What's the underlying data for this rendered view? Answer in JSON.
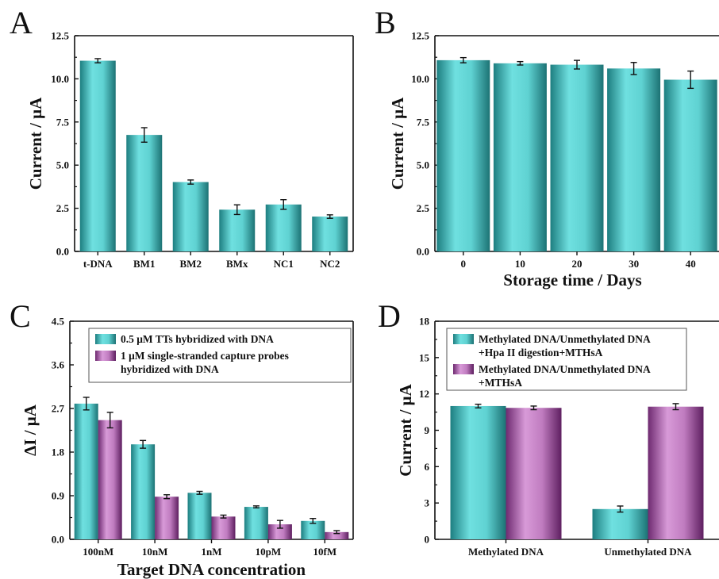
{
  "colors": {
    "teal": "#4fc4c4",
    "purple": "#b060b0",
    "axis": "#111111"
  },
  "chart_data": [
    {
      "panel": "A",
      "type": "bar",
      "ylabel": "Current / μA",
      "xlabel": "",
      "ylim": [
        0,
        12.5
      ],
      "yticks": [
        "0.0",
        "2.5",
        "5.0",
        "7.5",
        "10.0",
        "12.5"
      ],
      "categories": [
        "t-DNA",
        "BM1",
        "BM2",
        "BMx",
        "NC1",
        "NC2"
      ],
      "series": [
        {
          "values": [
            11.05,
            6.75,
            4.02,
            2.42,
            2.72,
            2.02
          ],
          "errors": [
            0.12,
            0.42,
            0.12,
            0.28,
            0.28,
            0.1
          ]
        }
      ]
    },
    {
      "panel": "B",
      "type": "bar",
      "ylabel": "Current / μA",
      "xlabel": "Storage time / Days",
      "ylim": [
        0,
        12.5
      ],
      "yticks": [
        "0.0",
        "2.5",
        "5.0",
        "7.5",
        "10.0",
        "12.5"
      ],
      "categories": [
        "0",
        "10",
        "20",
        "30",
        "40"
      ],
      "series": [
        {
          "values": [
            11.08,
            10.9,
            10.82,
            10.6,
            9.95
          ],
          "errors": [
            0.15,
            0.1,
            0.25,
            0.35,
            0.5
          ]
        }
      ]
    },
    {
      "panel": "C",
      "type": "bar",
      "ylabel": "ΔI / μA",
      "xlabel": "Target DNA concentration",
      "ylim": [
        0,
        4.5
      ],
      "yticks": [
        "0.0",
        "0.9",
        "1.8",
        "2.7",
        "3.6",
        "4.5"
      ],
      "categories": [
        "100nM",
        "10nM",
        "1nM",
        "10pM",
        "10fM"
      ],
      "series": [
        {
          "name": "0.5 μM TTs hybridized with DNA",
          "values": [
            2.8,
            1.96,
            0.96,
            0.67,
            0.38
          ],
          "errors": [
            0.13,
            0.08,
            0.03,
            0.02,
            0.05
          ]
        },
        {
          "name": "1 μM single-stranded capture probes hybridized with DNA",
          "values": [
            2.46,
            0.88,
            0.47,
            0.31,
            0.15
          ],
          "errors": [
            0.16,
            0.04,
            0.03,
            0.08,
            0.03
          ]
        }
      ],
      "legend": "top-right"
    },
    {
      "panel": "D",
      "type": "bar",
      "ylabel": "Current / μA",
      "xlabel": "",
      "ylim": [
        0,
        18
      ],
      "yticks": [
        "0",
        "3",
        "6",
        "9",
        "12",
        "15",
        "18"
      ],
      "categories": [
        "Methylated DNA",
        "Unmethylated DNA"
      ],
      "series": [
        {
          "name": "Methylated DNA/Unmethylated DNA +Hpa II digestion+MTHsA",
          "values": [
            11.0,
            2.5
          ],
          "errors": [
            0.15,
            0.25
          ]
        },
        {
          "name": "Methylated DNA/Unmethylated DNA +MTHsA",
          "values": [
            10.85,
            10.95
          ],
          "errors": [
            0.15,
            0.25
          ]
        }
      ],
      "legend": "top-right"
    }
  ]
}
